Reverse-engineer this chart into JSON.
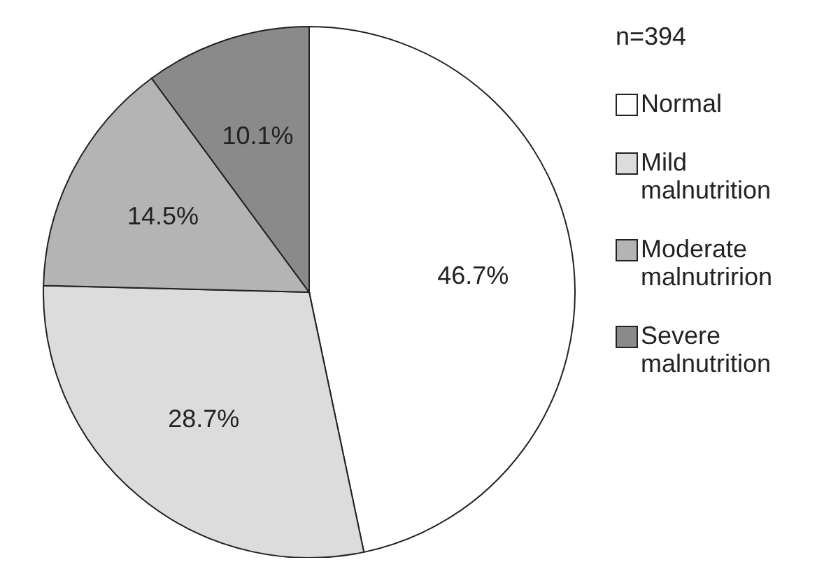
{
  "chart_data": {
    "type": "pie",
    "categories": [
      "Normal",
      "Mild malnutrition",
      "Moderate malnutririon",
      "Severe malnutrition"
    ],
    "values": [
      46.7,
      28.7,
      14.5,
      10.1
    ],
    "value_labels": [
      "46.7%",
      "28.7%",
      "14.5%",
      "10.1%"
    ],
    "colors": [
      "#ffffff",
      "#dcdcdc",
      "#b4b4b4",
      "#8a8a8a"
    ],
    "legend": "right",
    "annotations": [
      "n=394"
    ]
  }
}
